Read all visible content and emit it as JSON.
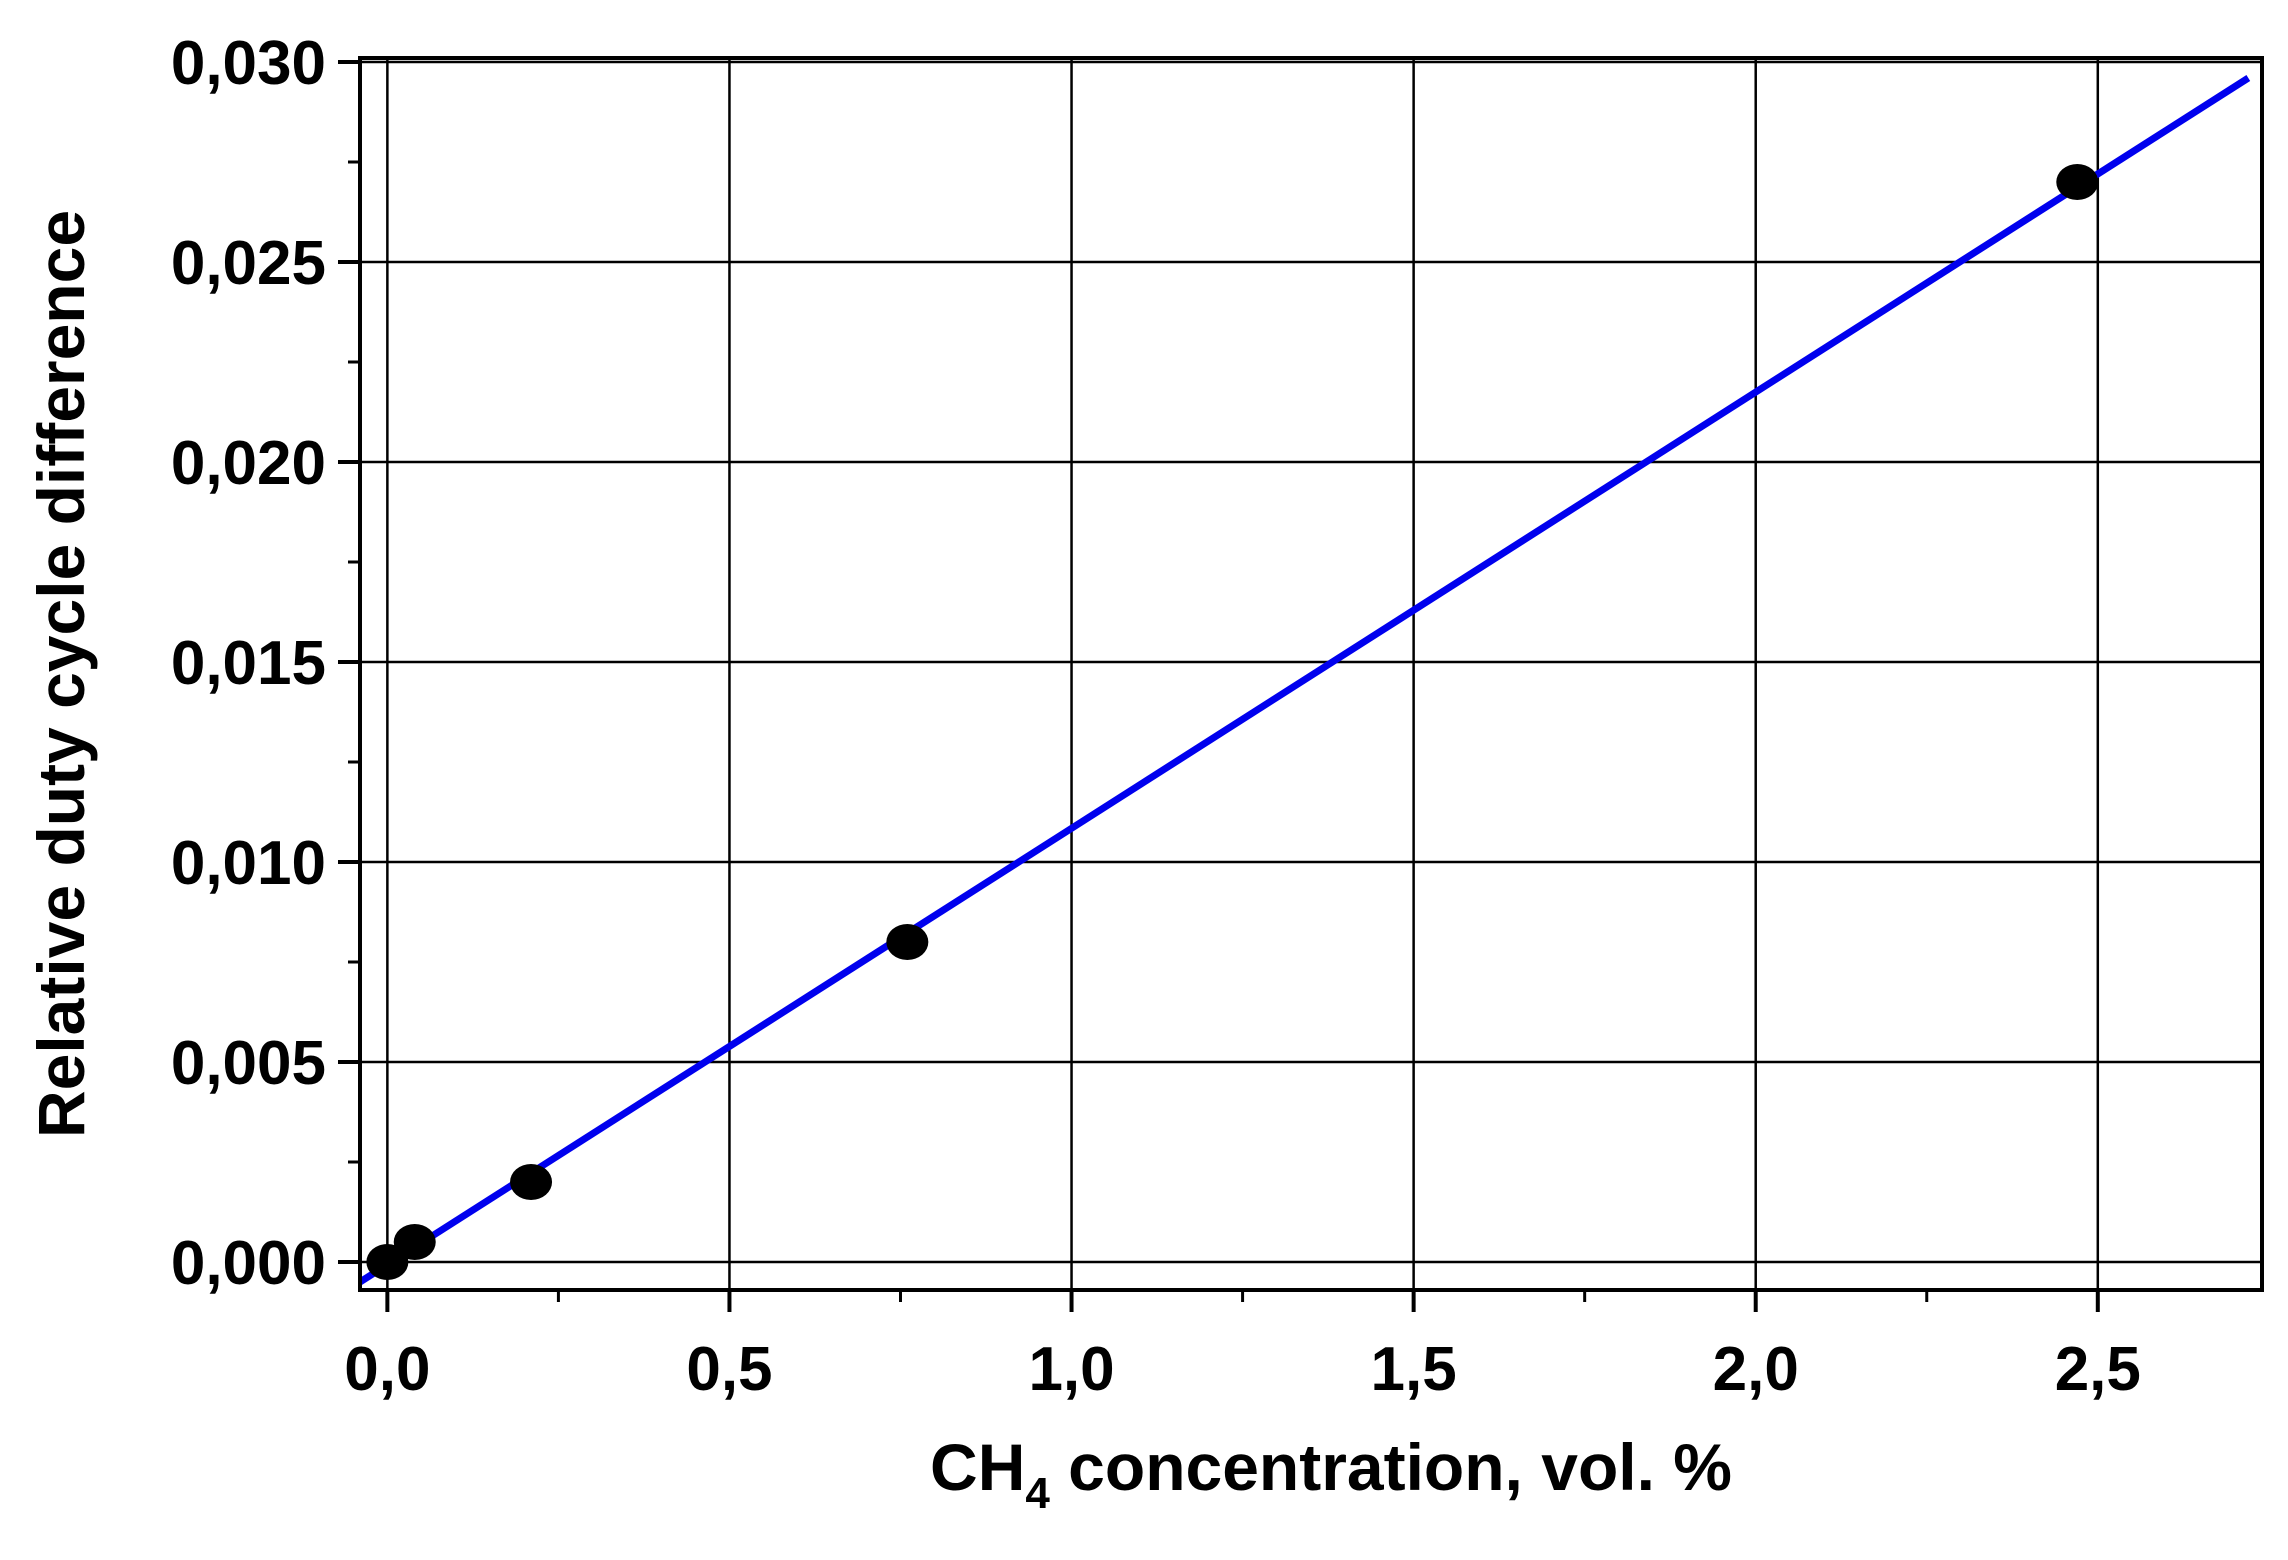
{
  "chart_data": {
    "type": "scatter",
    "xlabel": {
      "prefix": "CH",
      "subscript": "4",
      "suffix": " concentration, vol. %"
    },
    "ylabel": "Relative duty cycle difference",
    "xlim": [
      -0.04,
      2.74
    ],
    "ylim": [
      -0.0007,
      0.0301
    ],
    "x_ticks": [
      0.0,
      0.5,
      1.0,
      1.5,
      2.0,
      2.5
    ],
    "x_tick_labels": [
      "0,0",
      "0,5",
      "1,0",
      "1,5",
      "2,0",
      "2,5"
    ],
    "y_ticks": [
      0.0,
      0.005,
      0.01,
      0.015,
      0.02,
      0.025,
      0.03
    ],
    "y_tick_labels": [
      "0,000",
      "0,005",
      "0,010",
      "0,015",
      "0,020",
      "0,025",
      "0,030"
    ],
    "grid": true,
    "series": [
      {
        "kind": "points",
        "color": "#000000",
        "x": [
          0.0,
          0.04,
          0.21,
          0.76,
          2.47
        ],
        "y": [
          0.0,
          0.0005,
          0.002,
          0.008,
          0.027
        ]
      },
      {
        "kind": "fit-line",
        "color": "#0000ee",
        "x": [
          -0.04,
          2.72
        ],
        "y": [
          -0.0005,
          0.0296
        ]
      }
    ]
  }
}
